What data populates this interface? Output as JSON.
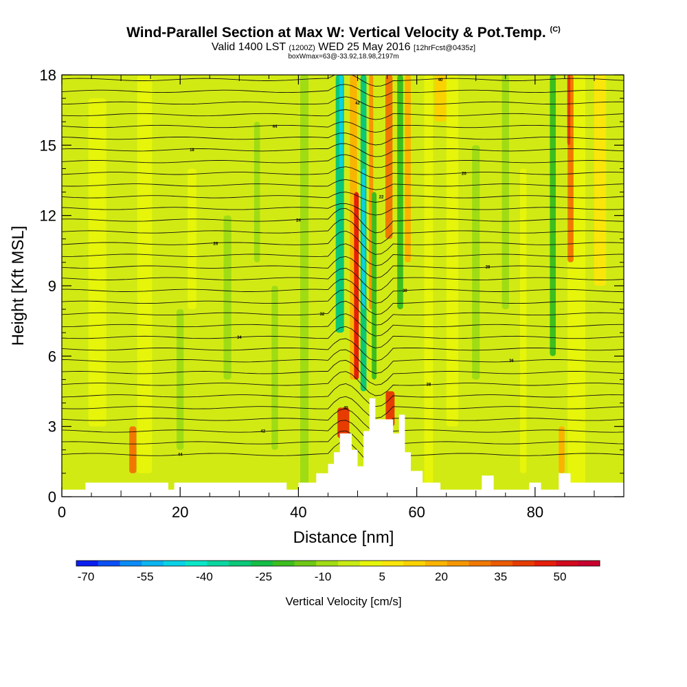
{
  "chart_data": {
    "type": "heatmap",
    "title": "Wind-Parallel Section at Max W: Vertical Velocity & Pot.Temp.",
    "title_mark": "(C)",
    "subtitle_main": "Valid 1400 LST",
    "subtitle_z": "(1200Z)",
    "subtitle_date": "WED 25 May 2016",
    "subtitle_fcst": "[12hrFcst@0435z]",
    "box_note": "boxWmax=63@-33.92,18.98,2197m",
    "xlabel": "Distance [nm]",
    "ylabel": "Height [Kft MSL]",
    "xlim": [
      0,
      95
    ],
    "ylim": [
      0,
      18
    ],
    "xticks": [
      "0",
      "20",
      "40",
      "60",
      "80"
    ],
    "yticks": [
      "0",
      "3",
      "6",
      "9",
      "12",
      "15",
      "18"
    ],
    "colorbar": {
      "label": "Vertical Velocity [cm/s]",
      "tick_labels": [
        "-70",
        "-55",
        "-40",
        "-25",
        "-10",
        "5",
        "20",
        "35",
        "50"
      ],
      "colors": [
        "#0a1ef0",
        "#0a50f5",
        "#0a8cf5",
        "#0ab4f0",
        "#0ad2e6",
        "#0ae6c8",
        "#0ad7a0",
        "#0ac878",
        "#14be46",
        "#3cbe1e",
        "#6ec814",
        "#a0dc14",
        "#c8eb14",
        "#e6f50a",
        "#fae60a",
        "#fad200",
        "#fab400",
        "#f59600",
        "#f07800",
        "#eb5a00",
        "#e63c00",
        "#e61e0a",
        "#d20a1e",
        "#c8002d"
      ]
    },
    "contour_labels": [
      "44",
      "42",
      "40",
      "38",
      "36",
      "34",
      "32",
      "30",
      "28",
      "26",
      "24",
      "22",
      "20",
      "18"
    ],
    "max_w_cm_s": 63,
    "max_w_location": "-33.92,18.98,2197m",
    "terrain_peak_kft": 4.2
  }
}
